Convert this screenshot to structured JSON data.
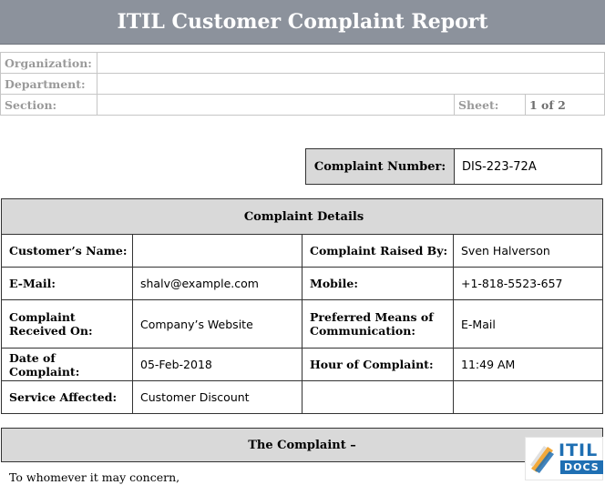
{
  "title": "ITIL Customer Complaint Report",
  "org": {
    "organization_label": "Organization:",
    "organization_value": "",
    "department_label": "Department:",
    "department_value": "",
    "section_label": "Section:",
    "section_value": "",
    "sheet_label": "Sheet:",
    "sheet_value": "1 of 2"
  },
  "complaint_number": {
    "label": "Complaint Number:",
    "value": "DIS-223-72A"
  },
  "details": {
    "header": "Complaint Details",
    "customer_name_label": "Customer’s Name:",
    "customer_name_value": "",
    "raised_by_label": "Complaint Raised By:",
    "raised_by_value": "Sven Halverson",
    "email_label": "E-Mail:",
    "email_value": "shalv@example.com",
    "mobile_label": "Mobile:",
    "mobile_value": "+1-818-5523-657",
    "received_on_label": "Complaint Received On:",
    "received_on_value": "Company’s Website",
    "preferred_label": "Preferred Means of Communication:",
    "preferred_value": "E-Mail",
    "date_label": "Date of Complaint:",
    "date_value": "05-Feb-2018",
    "hour_label": "Hour of Complaint:",
    "hour_value": "11:49 AM",
    "service_label": "Service Affected:",
    "service_value": "Customer Discount",
    "extra_label": "",
    "extra_value": ""
  },
  "complaint": {
    "header": "The Complaint –",
    "body": "To whomever it may concern,"
  },
  "logo": {
    "itil": "ITIL",
    "docs": "DOCS"
  }
}
